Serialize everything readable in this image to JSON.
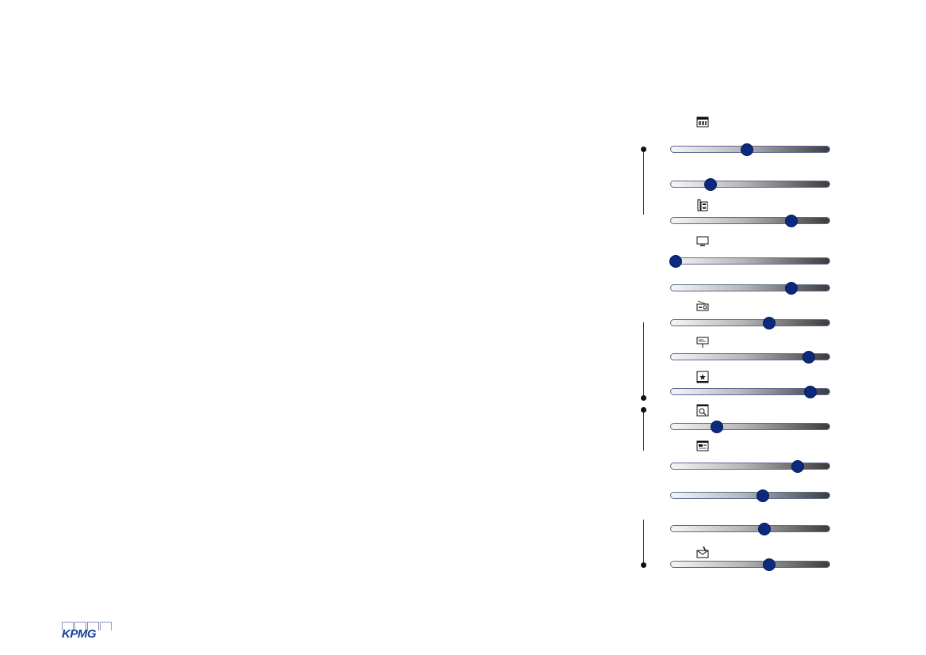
{
  "brand": {
    "logo_text": "KPMG",
    "color": "#1a3f9c"
  },
  "colors": {
    "knob": "#0b2a7d",
    "track_border": "#5a6a96"
  },
  "sliders": [
    {
      "name": "slider-1",
      "value": 0.48
    },
    {
      "name": "slider-2",
      "value": 0.25
    },
    {
      "name": "slider-3",
      "value": 0.76
    },
    {
      "name": "slider-4",
      "value": 0.03
    },
    {
      "name": "slider-5",
      "value": 0.76
    },
    {
      "name": "slider-6",
      "value": 0.62
    },
    {
      "name": "slider-7",
      "value": 0.87
    },
    {
      "name": "slider-8",
      "value": 0.88
    },
    {
      "name": "slider-9",
      "value": 0.29
    },
    {
      "name": "slider-10",
      "value": 0.8
    },
    {
      "name": "slider-11",
      "value": 0.58
    },
    {
      "name": "slider-12",
      "value": 0.59
    },
    {
      "name": "slider-13",
      "value": 0.62
    }
  ],
  "icons": [
    "newspaper-icon",
    "phone-icon",
    "tv-icon",
    "radio-icon",
    "billboard-icon",
    "cinema-icon",
    "search-icon",
    "website-icon",
    "mail-icon"
  ]
}
